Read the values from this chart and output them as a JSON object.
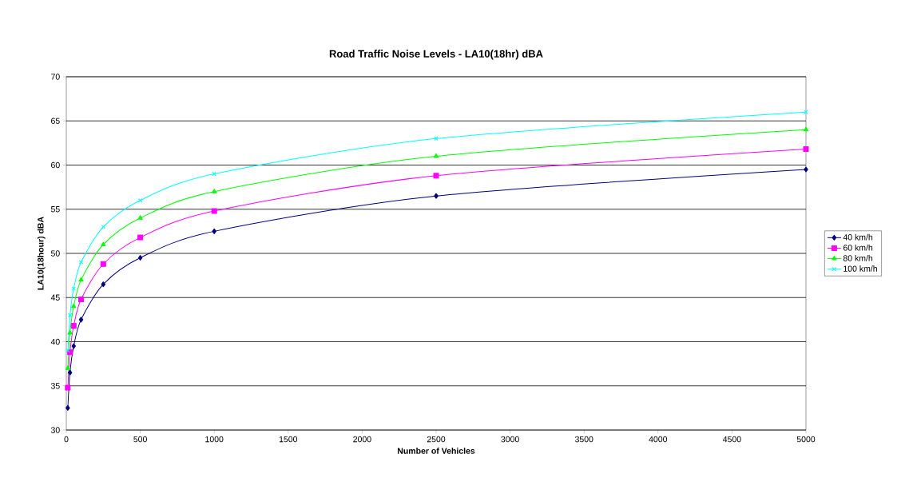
{
  "chart_data": {
    "type": "line",
    "title": "Road Traffic Noise Levels - LA10(18hr) dBA",
    "xlabel": "Number of Vehicles",
    "ylabel": "LA10(18hour) dBA",
    "x": [
      10,
      25,
      50,
      100,
      250,
      500,
      1000,
      2500,
      5000
    ],
    "series": [
      {
        "name": "40 km/h",
        "color": "#000080",
        "marker": "diamond",
        "values": [
          32.5,
          36.5,
          39.5,
          42.5,
          46.5,
          49.5,
          52.5,
          56.5,
          59.5
        ]
      },
      {
        "name": "60 km/h",
        "color": "#ff00ff",
        "marker": "square",
        "values": [
          34.8,
          38.8,
          41.8,
          44.8,
          48.8,
          51.8,
          54.8,
          58.8,
          61.8
        ]
      },
      {
        "name": "80 km/h",
        "color": "#00ff00",
        "marker": "triangle",
        "values": [
          37,
          41,
          44,
          47,
          51,
          54,
          57,
          61,
          64
        ]
      },
      {
        "name": "100 km/h",
        "color": "#00ffff",
        "marker": "cross",
        "values": [
          39,
          43,
          46,
          49,
          53,
          56,
          59,
          63,
          66
        ]
      }
    ],
    "xlim": [
      0,
      5000
    ],
    "xticks": [
      0,
      500,
      1000,
      1500,
      2000,
      2500,
      3000,
      3500,
      4000,
      4500,
      5000
    ],
    "ylim": [
      30,
      70
    ],
    "yticks": [
      30,
      35,
      40,
      45,
      50,
      55,
      60,
      65,
      70
    ],
    "grid": "y",
    "legend": "right",
    "line_style": "solid"
  }
}
